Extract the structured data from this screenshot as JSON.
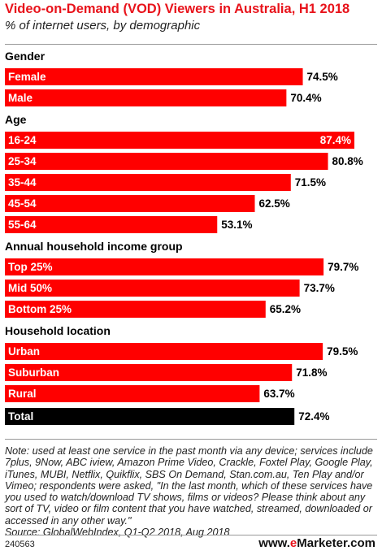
{
  "title": "Video-on-Demand (VOD) Viewers in Australia, H1 2018",
  "subtitle": "% of internet users, by demographic",
  "chart_data": {
    "type": "bar",
    "orientation": "horizontal",
    "xlim": [
      0,
      100
    ],
    "value_suffix": "%",
    "colors": {
      "bar": "#ff0000",
      "total": "#000000",
      "title": "#e8131b"
    },
    "groups": [
      {
        "name": "Gender",
        "items": [
          {
            "label": "Female",
            "value": 74.5
          },
          {
            "label": "Male",
            "value": 70.4
          }
        ]
      },
      {
        "name": "Age",
        "items": [
          {
            "label": "16-24",
            "value": 87.4
          },
          {
            "label": "25-34",
            "value": 80.8
          },
          {
            "label": "35-44",
            "value": 71.5
          },
          {
            "label": "45-54",
            "value": 62.5
          },
          {
            "label": "55-64",
            "value": 53.1
          }
        ]
      },
      {
        "name": "Annual household income group",
        "items": [
          {
            "label": "Top 25%",
            "value": 79.7
          },
          {
            "label": "Mid 50%",
            "value": 73.7
          },
          {
            "label": "Bottom 25%",
            "value": 65.2
          }
        ]
      },
      {
        "name": "Household location",
        "items": [
          {
            "label": "Urban",
            "value": 79.5
          },
          {
            "label": "Suburban",
            "value": 71.8
          },
          {
            "label": "Rural",
            "value": 63.7
          }
        ]
      },
      {
        "name": "",
        "items": [
          {
            "label": "Total",
            "value": 72.4,
            "is_total": true
          }
        ]
      }
    ]
  },
  "note": "Note: used at least one service in the past month via any device; services include 7plus, 9Now, ABC iview, Amazon Prime Video, Crackle, Foxtel Play, Google Play, iTunes, MUBI, Netflix, Quikflix, SBS On Demand, Stan.com.au, Ten Play and/or Vimeo; respondents were asked, \"In the last month, which of these services have you used to watch/download TV shows, films or videos? Please think about any sort of TV, video or film content that you have watched, streamed, downloaded or accessed in any other way.\"",
  "source": "Source: GlobalWebIndex, Q1-Q2 2018, Aug 2018",
  "footer_id": "240563",
  "brand": {
    "prefix": "www.",
    "e": "e",
    "rest": "Marketer",
    "suffix": ".com"
  }
}
